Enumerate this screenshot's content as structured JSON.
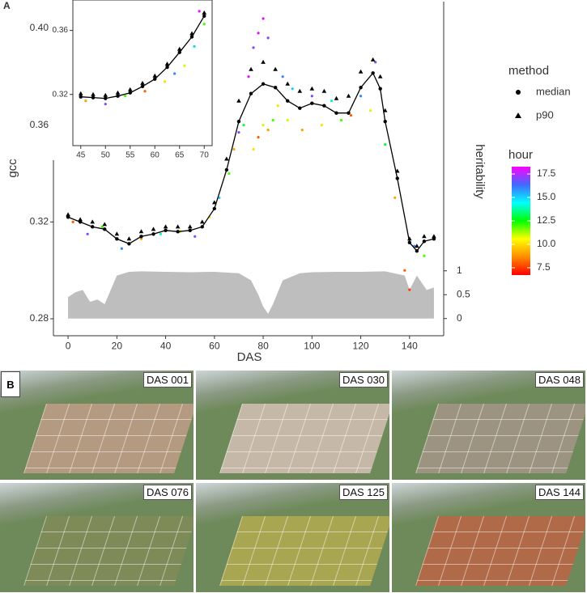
{
  "chart_data": [
    {
      "type": "scatter",
      "panel_label": "A",
      "xlabel": "DAS",
      "ylabel": "gcc",
      "y2label": "heritability",
      "xlim": [
        -6,
        154
      ],
      "xticks": [
        0,
        20,
        40,
        60,
        80,
        100,
        120,
        140
      ],
      "ylim": [
        0.273,
        0.411
      ],
      "yticks": [
        0.28,
        0.32,
        0.36,
        {
          "value": 0.4,
          "label": "0.40"
        }
      ],
      "y2lim": [
        -0.36,
        6.64
      ],
      "y2ticks": [
        0,
        0.5,
        1
      ],
      "x": [
        0,
        5,
        10,
        15,
        20,
        25,
        30,
        35,
        40,
        45,
        50,
        55,
        60,
        65,
        70,
        75,
        80,
        85,
        90,
        95,
        100,
        105,
        110,
        115,
        120,
        125,
        128,
        130,
        135,
        140,
        143,
        146,
        150
      ],
      "legend_title": "method",
      "series": [
        {
          "name": "median",
          "marker": "circle",
          "color": "#000000",
          "line": true,
          "values": [
            0.322,
            0.32,
            0.318,
            0.317,
            0.313,
            0.311,
            0.314,
            0.315,
            0.3165,
            0.316,
            0.3165,
            0.318,
            0.3255,
            0.3415,
            0.3615,
            0.373,
            0.377,
            0.3755,
            0.37,
            0.367,
            0.369,
            0.368,
            0.365,
            0.365,
            0.3755,
            0.3815,
            0.375,
            0.3615,
            0.338,
            0.3115,
            0.308,
            0.312,
            0.313
          ]
        },
        {
          "name": "p90",
          "marker": "triangle",
          "color": "#000000",
          "line": false,
          "values": [
            0.323,
            0.321,
            0.32,
            0.319,
            0.315,
            0.313,
            0.316,
            0.317,
            0.318,
            0.318,
            0.318,
            0.32,
            0.328,
            0.346,
            0.37,
            0.383,
            0.386,
            0.383,
            0.377,
            0.374,
            0.375,
            0.374,
            0.371,
            0.372,
            0.382,
            0.387,
            0.38,
            0.366,
            0.341,
            0.313,
            0.31,
            0.314,
            0.314
          ]
        }
      ],
      "hour_points": {
        "x": [
          2,
          8,
          14,
          22,
          30,
          38,
          46,
          52,
          58,
          62,
          66,
          68,
          70,
          72,
          74,
          76,
          76,
          78,
          78,
          80,
          80,
          82,
          82,
          84,
          86,
          88,
          90,
          92,
          96,
          100,
          104,
          108,
          112,
          116,
          120,
          124,
          126,
          130,
          134,
          138,
          140,
          142,
          146,
          150
        ],
        "y": [
          0.32,
          0.315,
          0.318,
          0.309,
          0.313,
          0.315,
          0.316,
          0.314,
          0.322,
          0.33,
          0.34,
          0.35,
          0.357,
          0.36,
          0.38,
          0.35,
          0.392,
          0.355,
          0.398,
          0.36,
          0.404,
          0.358,
          0.396,
          0.362,
          0.368,
          0.38,
          0.362,
          0.375,
          0.358,
          0.372,
          0.36,
          0.37,
          0.362,
          0.364,
          0.372,
          0.366,
          0.386,
          0.352,
          0.33,
          0.3,
          0.292,
          0.31,
          0.306,
          0.314
        ],
        "hour": [
          8,
          17,
          12,
          16,
          9,
          14,
          11,
          17,
          10,
          15,
          12,
          9,
          17,
          13,
          18,
          10,
          17,
          8,
          18,
          11,
          18,
          9,
          17,
          12,
          10,
          16,
          11,
          15,
          9,
          17,
          10,
          14,
          12,
          8,
          16,
          11,
          17,
          13,
          9,
          8,
          7.5,
          16,
          12,
          15
        ]
      },
      "heritability": {
        "axis": "y2",
        "color": "#bebebe",
        "x": [
          0,
          3,
          6,
          9,
          12,
          15,
          20,
          25,
          30,
          40,
          50,
          60,
          70,
          75,
          78,
          80,
          82,
          84,
          88,
          95,
          100,
          110,
          120,
          130,
          138,
          140,
          143,
          147,
          150
        ],
        "values": [
          0.45,
          0.55,
          0.6,
          0.35,
          0.4,
          0.3,
          0.9,
          0.98,
          0.99,
          0.98,
          0.97,
          0.98,
          0.95,
          0.8,
          0.5,
          0.25,
          0.1,
          0.3,
          0.8,
          0.95,
          0.97,
          0.98,
          0.98,
          0.99,
          0.9,
          0.6,
          0.9,
          0.6,
          0.65
        ]
      },
      "colorbar": {
        "title": "hour",
        "lim": [
          6.72,
          18.28
        ],
        "ticks": [
          7.5,
          {
            "value": 10,
            "label": "10.0"
          },
          12.5,
          {
            "value": 15,
            "label": "15.0"
          },
          17.5
        ],
        "colors": [
          "#ff0000",
          "#ff8c00",
          "#ffff00",
          "#00ff00",
          "#00ffff",
          "#4169ff",
          "#ff00ff"
        ]
      }
    },
    {
      "type": "scatter",
      "xlim": [
        43.4,
        71.6
      ],
      "xticks": [
        45,
        50,
        55,
        60,
        65,
        70
      ],
      "ylim": [
        0.288,
        0.379
      ],
      "yticks": [
        0.32,
        0.36
      ],
      "x": [
        45,
        47.5,
        50,
        52.5,
        55,
        57.5,
        60,
        62.5,
        65,
        67.5,
        70
      ],
      "series": [
        {
          "name": "median",
          "marker": "circle",
          "color": "#000000",
          "line": true,
          "values": [
            0.3185,
            0.318,
            0.3175,
            0.319,
            0.321,
            0.325,
            0.3296,
            0.337,
            0.3463,
            0.356,
            0.369
          ]
        },
        {
          "name": "p90",
          "marker": "triangle",
          "color": "#000000",
          "line": false,
          "values": [
            0.3205,
            0.32,
            0.3195,
            0.321,
            0.323,
            0.327,
            0.3316,
            0.339,
            0.3483,
            0.358,
            0.371
          ]
        }
      ],
      "hour_points": {
        "x": [
          46,
          50,
          54,
          58,
          62,
          64,
          66,
          68,
          69,
          70
        ],
        "y": [
          0.316,
          0.314,
          0.319,
          0.322,
          0.328,
          0.333,
          0.338,
          0.35,
          0.372,
          0.364
        ],
        "hour": [
          9,
          17,
          12,
          8,
          10,
          16,
          11,
          15,
          18,
          12
        ]
      }
    }
  ],
  "panel_b": {
    "panel_label": "B",
    "photos": [
      {
        "label": "DAS 001"
      },
      {
        "label": "DAS 030"
      },
      {
        "label": "DAS 048"
      },
      {
        "label": "DAS 076"
      },
      {
        "label": "DAS 125"
      },
      {
        "label": "DAS 144"
      }
    ]
  }
}
